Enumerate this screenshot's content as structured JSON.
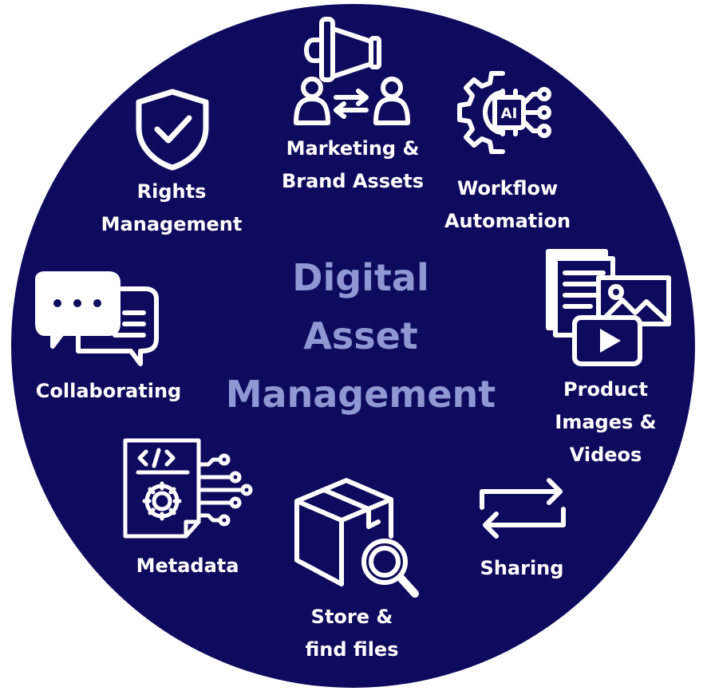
{
  "colors": {
    "background": "#0e0b5e",
    "icon": "#ffffff",
    "title": "#8f98d2",
    "label": "#ffffff"
  },
  "title": {
    "lines": [
      "Digital",
      "Asset",
      "Management"
    ]
  },
  "items": [
    {
      "key": "rights",
      "icon": "shield-check-icon",
      "lines": [
        "Rights",
        "Management"
      ]
    },
    {
      "key": "marketing",
      "icon": "megaphone-people-exchange-icon",
      "lines": [
        "Marketing &",
        "Brand Assets"
      ]
    },
    {
      "key": "workflow",
      "icon": "gear-ai-circuit-icon",
      "lines": [
        "Workflow",
        "Automation"
      ]
    },
    {
      "key": "product",
      "icon": "media-files-icon",
      "lines": [
        "Product",
        "Images &",
        "Videos"
      ]
    },
    {
      "key": "sharing",
      "icon": "sync-arrows-icon",
      "lines": [
        "Sharing"
      ]
    },
    {
      "key": "store",
      "icon": "box-search-icon",
      "lines": [
        "Store &",
        "find files"
      ]
    },
    {
      "key": "metadata",
      "icon": "code-document-gear-icon",
      "lines": [
        "Metadata"
      ]
    },
    {
      "key": "collab",
      "icon": "chat-bubbles-icon",
      "lines": [
        "Collaborating"
      ]
    }
  ]
}
